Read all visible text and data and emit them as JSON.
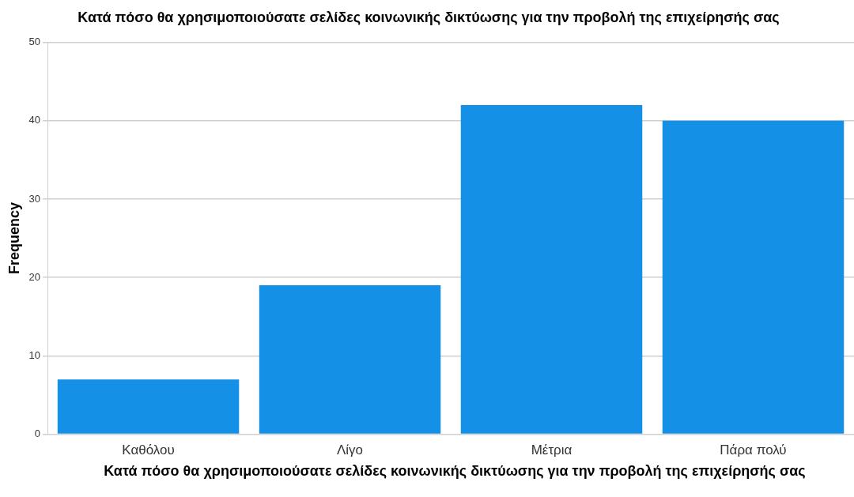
{
  "chart_data": {
    "type": "bar",
    "title": "Κατά πόσο θα χρησιμοποιούσατε σελίδες κοινωνικής δικτύωσης για την προβολή της επιχείρησής σας",
    "xlabel": "Κατά πόσο θα χρησιμοποιούσατε σελίδες κοινωνικής δικτύωσης για την προβολή της επιχείρησής σας",
    "ylabel": "Frequency",
    "categories": [
      "Καθόλου",
      "Λίγο",
      "Μέτρια",
      "Πάρα πολύ"
    ],
    "values": [
      7,
      19,
      42,
      40
    ],
    "color": "#1491e6",
    "ylim": [
      0,
      50
    ],
    "yticks": [
      0,
      10,
      20,
      30,
      40,
      50
    ],
    "grid": "y"
  }
}
